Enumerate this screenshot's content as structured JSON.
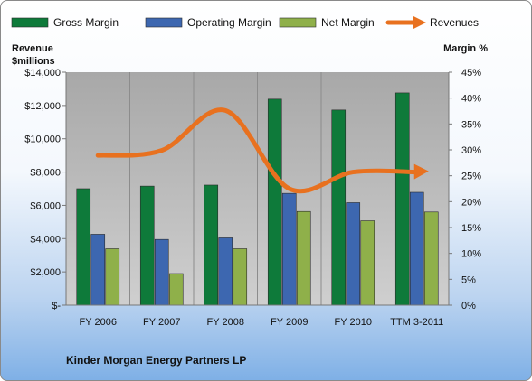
{
  "chart_data": {
    "type": "bar",
    "title": "Kinder Morgan Energy Partners LP",
    "left_axis_title_line1": "Revenue",
    "left_axis_title_line2": "$millions",
    "right_axis_title": "Margin %",
    "categories": [
      "FY 2006",
      "FY 2007",
      "FY 2008",
      "FY 2009",
      "FY 2010",
      "TTM 3-2011"
    ],
    "left_axis": {
      "ylim": [
        0,
        14000
      ],
      "ticks": [
        0,
        2000,
        4000,
        6000,
        8000,
        10000,
        12000,
        14000
      ],
      "tick_labels": [
        "$-",
        "$2,000",
        "$4,000",
        "$6,000",
        "$8,000",
        "$10,000",
        "$12,000",
        "$14,000"
      ]
    },
    "right_axis": {
      "ylim": [
        0,
        45
      ],
      "ticks": [
        0,
        5,
        10,
        15,
        20,
        25,
        30,
        35,
        40,
        45
      ],
      "tick_labels": [
        "0%",
        "5%",
        "10%",
        "15%",
        "20%",
        "25%",
        "30%",
        "35%",
        "40%",
        "45%"
      ]
    },
    "series": [
      {
        "name": "Gross Margin",
        "kind": "bar",
        "axis": "right",
        "color": "#0e7a3a",
        "values": [
          22.5,
          23,
          23.2,
          39.8,
          37.7,
          41
        ]
      },
      {
        "name": "Operating Margin",
        "kind": "bar",
        "axis": "right",
        "color": "#3d67b0",
        "values": [
          13.7,
          12.7,
          13,
          21.6,
          19.8,
          21.8
        ]
      },
      {
        "name": "Net Margin",
        "kind": "bar",
        "axis": "right",
        "color": "#8fb04a",
        "values": [
          10.9,
          6.1,
          10.9,
          18.1,
          16.3,
          18
        ]
      },
      {
        "name": "Revenues",
        "kind": "line",
        "axis": "left",
        "color": "#e8711f",
        "values": [
          9000,
          9300,
          11700,
          7000,
          8000,
          8000
        ]
      }
    ],
    "grid": "vertical",
    "legend_position": "top"
  }
}
